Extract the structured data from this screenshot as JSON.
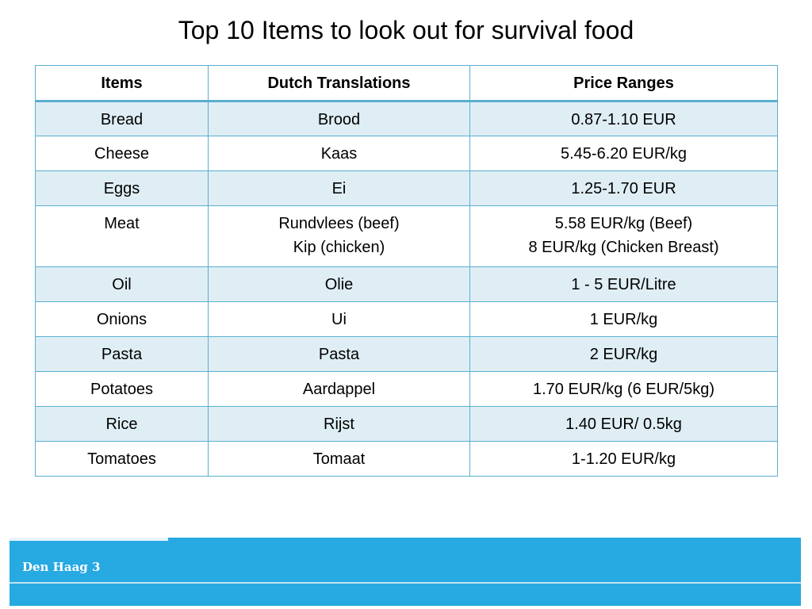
{
  "slide": {
    "title": "Top 10 Items to look out for survival food",
    "footer": "Den Haag 3"
  },
  "table": {
    "headers": [
      "Items",
      "Dutch Translations",
      "Price Ranges"
    ],
    "rows": [
      {
        "item": "Bread",
        "dutch": [
          "Brood"
        ],
        "price": [
          "0.87-1.10 EUR"
        ]
      },
      {
        "item": "Cheese",
        "dutch": [
          "Kaas"
        ],
        "price": [
          "5.45-6.20 EUR/kg"
        ]
      },
      {
        "item": "Eggs",
        "dutch": [
          "Ei"
        ],
        "price": [
          "1.25-1.70 EUR"
        ]
      },
      {
        "item": "Meat",
        "dutch": [
          "Rundvlees (beef)",
          "Kip (chicken)"
        ],
        "price": [
          "5.58 EUR/kg (Beef)",
          "8 EUR/kg (Chicken Breast)"
        ]
      },
      {
        "item": "Oil",
        "dutch": [
          "Olie"
        ],
        "price": [
          "1 - 5 EUR/Litre"
        ]
      },
      {
        "item": "Onions",
        "dutch": [
          "Ui"
        ],
        "price": [
          "1 EUR/kg"
        ]
      },
      {
        "item": "Pasta",
        "dutch": [
          "Pasta"
        ],
        "price": [
          "2 EUR/kg"
        ]
      },
      {
        "item": "Potatoes",
        "dutch": [
          "Aardappel"
        ],
        "price": [
          "1.70 EUR/kg (6 EUR/5kg)"
        ]
      },
      {
        "item": "Rice",
        "dutch": [
          "Rijst"
        ],
        "price": [
          "1.40 EUR/ 0.5kg"
        ]
      },
      {
        "item": "Tomatoes",
        "dutch": [
          "Tomaat"
        ],
        "price": [
          "1-1.20 EUR/kg"
        ]
      }
    ]
  },
  "colors": {
    "border": "#5aaed0",
    "row_shade": "#dfeef5",
    "footer_band": "#27a9e1"
  }
}
